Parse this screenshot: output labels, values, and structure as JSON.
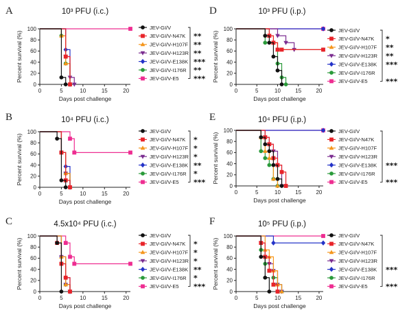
{
  "figure": {
    "colors": {
      "JEV-GI/V": "#111111",
      "JEV-GI/V-N47K": "#e8242a",
      "JEV-GI/V-H107F": "#f5961d",
      "JEV-GI/V-H123R": "#7b2d90",
      "JEV-GI/V-E138K": "#2433c8",
      "JEV-GI/V-I176R": "#2a9a3a",
      "JEV-GI/V-E5": "#ee2d91"
    },
    "markers": {
      "JEV-GI/V": "circle",
      "JEV-GI/V-N47K": "square",
      "JEV-GI/V-H107F": "triangle-up",
      "JEV-GI/V-H123R": "triangle-down",
      "JEV-GI/V-E138K": "diamond",
      "JEV-GI/V-I176R": "circle",
      "JEV-GI/V-E5": "square"
    }
  },
  "chart_data": [
    {
      "panel": "A",
      "type": "line",
      "title": "10³ PFU (i.c.)",
      "xlabel": "Days post challenge",
      "ylabel": "Percent survival (%)",
      "xlim": [
        0,
        21
      ],
      "ylim": [
        0,
        100
      ],
      "xticks": [
        0,
        5,
        10,
        15,
        20
      ],
      "yticks": [
        0,
        20,
        40,
        60,
        80,
        100
      ],
      "legend_position": "right",
      "series": [
        {
          "name": "JEV-GI/V",
          "sig": "",
          "x": [
            0,
            5,
            6
          ],
          "y": [
            100,
            12.5,
            0
          ]
        },
        {
          "name": "JEV-GI/V-N47K",
          "sig": "**",
          "x": [
            0,
            6,
            7
          ],
          "y": [
            100,
            50,
            0
          ]
        },
        {
          "name": "JEV-GI/V-H107F",
          "sig": "**",
          "x": [
            0,
            5,
            6,
            7
          ],
          "y": [
            100,
            87.5,
            37.5,
            0
          ]
        },
        {
          "name": "JEV-GI/V-H123R",
          "sig": "**",
          "x": [
            0,
            6,
            7,
            8
          ],
          "y": [
            100,
            50,
            12.5,
            0
          ]
        },
        {
          "name": "JEV-GI/V-E138K",
          "sig": "***",
          "x": [
            0,
            6,
            7
          ],
          "y": [
            100,
            62.5,
            0
          ]
        },
        {
          "name": "JEV-GI/V-I176R",
          "sig": "**",
          "x": [
            0,
            5,
            6,
            7
          ],
          "y": [
            100,
            87.5,
            37.5,
            0
          ]
        },
        {
          "name": "JEV-GI/V-E5",
          "sig": "***",
          "x": [
            0,
            21
          ],
          "y": [
            100,
            100
          ]
        }
      ]
    },
    {
      "panel": "B",
      "type": "line",
      "title": "10⁴ PFU (i.c.)",
      "xlabel": "Days post challenge",
      "ylabel": "Percent survival (%)",
      "xlim": [
        0,
        21
      ],
      "ylim": [
        0,
        100
      ],
      "xticks": [
        0,
        5,
        10,
        15,
        20
      ],
      "yticks": [
        0,
        20,
        40,
        60,
        80,
        100
      ],
      "legend_position": "right",
      "series": [
        {
          "name": "JEV-GI/V",
          "sig": "",
          "x": [
            0,
            4,
            5,
            6
          ],
          "y": [
            100,
            87.5,
            12.5,
            0
          ]
        },
        {
          "name": "JEV-GI/V-N47K",
          "sig": "*",
          "x": [
            0,
            5,
            6,
            7
          ],
          "y": [
            100,
            62.5,
            12.5,
            0
          ]
        },
        {
          "name": "JEV-GI/V-H107F",
          "sig": "*",
          "x": [
            0,
            5,
            6,
            7
          ],
          "y": [
            100,
            62.5,
            25,
            0
          ]
        },
        {
          "name": "JEV-GI/V-H123R",
          "sig": "*",
          "x": [
            0,
            5,
            6,
            7
          ],
          "y": [
            100,
            62.5,
            25,
            0
          ]
        },
        {
          "name": "JEV-GI/V-E138K",
          "sig": "**",
          "x": [
            0,
            5,
            6,
            7
          ],
          "y": [
            100,
            62.5,
            37.5,
            0
          ]
        },
        {
          "name": "JEV-GI/V-I176R",
          "sig": "*",
          "x": [
            0,
            5,
            6,
            7
          ],
          "y": [
            100,
            62.5,
            25,
            0
          ]
        },
        {
          "name": "JEV-GI/V-E5",
          "sig": "***",
          "x": [
            0,
            7,
            8,
            21
          ],
          "y": [
            100,
            87.5,
            62.5,
            62.5
          ]
        }
      ]
    },
    {
      "panel": "C",
      "type": "line",
      "title": "4.5x10⁴ PFU (i.c.)",
      "xlabel": "Days post challenge",
      "ylabel": "Percent survival (%)",
      "xlim": [
        0,
        21
      ],
      "ylim": [
        0,
        100
      ],
      "xticks": [
        0,
        5,
        10,
        15,
        20
      ],
      "yticks": [
        0,
        20,
        40,
        60,
        80,
        100
      ],
      "legend_position": "right",
      "series": [
        {
          "name": "JEV-GI/V",
          "sig": "",
          "x": [
            0,
            4,
            5
          ],
          "y": [
            100,
            87.5,
            0
          ]
        },
        {
          "name": "JEV-GI/V-N47K",
          "sig": "*",
          "x": [
            0,
            4,
            5,
            6,
            7
          ],
          "y": [
            100,
            87.5,
            50,
            25,
            0
          ]
        },
        {
          "name": "JEV-GI/V-H107F",
          "sig": "*",
          "x": [
            0,
            5,
            6,
            7
          ],
          "y": [
            100,
            62.5,
            12.5,
            0
          ]
        },
        {
          "name": "JEV-GI/V-H123R",
          "sig": "*",
          "x": [
            0,
            5,
            6,
            7
          ],
          "y": [
            100,
            62.5,
            12.5,
            0
          ]
        },
        {
          "name": "JEV-GI/V-E138K",
          "sig": "**",
          "x": [
            0,
            5,
            6,
            7
          ],
          "y": [
            100,
            62.5,
            25,
            0
          ]
        },
        {
          "name": "JEV-GI/V-I176R",
          "sig": "*",
          "x": [
            0,
            5,
            6,
            7
          ],
          "y": [
            100,
            50,
            12.5,
            0
          ]
        },
        {
          "name": "JEV-GI/V-E5",
          "sig": "***",
          "x": [
            0,
            6,
            7,
            8,
            21
          ],
          "y": [
            100,
            87.5,
            62.5,
            50,
            50
          ]
        }
      ]
    },
    {
      "panel": "D",
      "type": "line",
      "title": "10³ PFU (i.p.)",
      "xlabel": "Days post challenge",
      "ylabel": "Percent survival (%)",
      "xlim": [
        0,
        21
      ],
      "ylim": [
        0,
        100
      ],
      "xticks": [
        0,
        5,
        10,
        15,
        20
      ],
      "yticks": [
        0,
        20,
        40,
        60,
        80,
        100
      ],
      "legend_position": "right",
      "series": [
        {
          "name": "JEV-GI/V",
          "sig": "",
          "x": [
            0,
            7,
            8,
            9,
            10,
            11
          ],
          "y": [
            100,
            87.5,
            75,
            50,
            25,
            0
          ]
        },
        {
          "name": "JEV-GI/V-N47K",
          "sig": "*",
          "x": [
            0,
            8,
            9,
            10,
            11,
            21
          ],
          "y": [
            100,
            87.5,
            75,
            62.5,
            62.5,
            62.5
          ]
        },
        {
          "name": "JEV-GI/V-H107F",
          "sig": "**",
          "x": [
            0,
            8,
            9,
            10,
            21
          ],
          "y": [
            100,
            87.5,
            75,
            62.5,
            62.5
          ]
        },
        {
          "name": "JEV-GI/V-H123R",
          "sig": "**",
          "x": [
            0,
            10,
            12,
            14,
            21
          ],
          "y": [
            100,
            87.5,
            75,
            62.5,
            62.5
          ]
        },
        {
          "name": "JEV-GI/V-E138K",
          "sig": "***",
          "x": [
            0,
            21
          ],
          "y": [
            100,
            100
          ]
        },
        {
          "name": "JEV-GI/V-I176R",
          "sig": "",
          "x": [
            0,
            7,
            9,
            10,
            11,
            12
          ],
          "y": [
            100,
            75,
            75,
            37.5,
            12.5,
            0
          ]
        },
        {
          "name": "JEV-GI/V-E5",
          "sig": "***",
          "x": [
            0,
            21
          ],
          "y": [
            100,
            100
          ]
        }
      ]
    },
    {
      "panel": "E",
      "type": "line",
      "title": "10⁴ PFU (i.p.)",
      "xlabel": "Days post challenge",
      "ylabel": "Percent survival (%)",
      "xlim": [
        0,
        21
      ],
      "ylim": [
        0,
        100
      ],
      "xticks": [
        0,
        5,
        10,
        15,
        20
      ],
      "yticks": [
        0,
        20,
        40,
        60,
        80,
        100
      ],
      "legend_position": "right",
      "series": [
        {
          "name": "JEV-GI/V",
          "sig": "",
          "x": [
            0,
            6,
            7,
            8,
            9,
            10,
            11
          ],
          "y": [
            100,
            87.5,
            75,
            62.5,
            37.5,
            12.5,
            0
          ]
        },
        {
          "name": "JEV-GI/V-N47K",
          "sig": "",
          "x": [
            0,
            7,
            8,
            9,
            10,
            11,
            12
          ],
          "y": [
            100,
            87.5,
            75,
            50,
            37.5,
            25,
            0
          ]
        },
        {
          "name": "JEV-GI/V-H107F",
          "sig": "",
          "x": [
            0,
            6,
            7,
            8,
            9,
            10
          ],
          "y": [
            100,
            87.5,
            62.5,
            50,
            12.5,
            0
          ]
        },
        {
          "name": "JEV-GI/V-H123R",
          "sig": "",
          "x": [
            0,
            7,
            8,
            9,
            10,
            11
          ],
          "y": [
            100,
            87.5,
            75,
            62.5,
            37.5,
            0
          ]
        },
        {
          "name": "JEV-GI/V-E138K",
          "sig": "***",
          "x": [
            0,
            21
          ],
          "y": [
            100,
            100
          ]
        },
        {
          "name": "JEV-GI/V-I176R",
          "sig": "",
          "x": [
            0,
            6,
            7,
            8,
            9,
            10
          ],
          "y": [
            100,
            62.5,
            50,
            37.5,
            12.5,
            0
          ]
        },
        {
          "name": "JEV-GI/V-E5",
          "sig": "***",
          "x": [
            0,
            21
          ],
          "y": [
            100,
            100
          ]
        }
      ]
    },
    {
      "panel": "F",
      "type": "line",
      "title": "10⁵ PFU (i.p.)",
      "xlabel": "Days post challenge",
      "ylabel": "Percent survival (%)",
      "xlim": [
        0,
        21
      ],
      "ylim": [
        0,
        100
      ],
      "xticks": [
        0,
        5,
        10,
        15,
        20
      ],
      "yticks": [
        0,
        20,
        40,
        60,
        80,
        100
      ],
      "legend_position": "right",
      "series": [
        {
          "name": "JEV-GI/V",
          "sig": "",
          "x": [
            0,
            6,
            7,
            8
          ],
          "y": [
            100,
            62.5,
            25,
            0
          ]
        },
        {
          "name": "JEV-GI/V-N47K",
          "sig": "",
          "x": [
            0,
            6,
            7,
            8,
            9,
            10
          ],
          "y": [
            100,
            87.5,
            62.5,
            37.5,
            12.5,
            0
          ]
        },
        {
          "name": "JEV-GI/V-H107F",
          "sig": "",
          "x": [
            0,
            7,
            8,
            9,
            10,
            11
          ],
          "y": [
            100,
            75,
            62.5,
            37.5,
            12.5,
            0
          ]
        },
        {
          "name": "JEV-GI/V-H123R",
          "sig": "",
          "x": [
            0,
            6,
            7,
            8,
            9,
            10,
            11
          ],
          "y": [
            100,
            87.5,
            62.5,
            50,
            37.5,
            12.5,
            0
          ]
        },
        {
          "name": "JEV-GI/V-E138K",
          "sig": "***",
          "x": [
            0,
            9,
            21
          ],
          "y": [
            100,
            87.5,
            87.5
          ]
        },
        {
          "name": "JEV-GI/V-I176R",
          "sig": "",
          "x": [
            0,
            6,
            7,
            8,
            9,
            10,
            11
          ],
          "y": [
            100,
            75,
            50,
            37.5,
            25,
            12.5,
            0
          ]
        },
        {
          "name": "JEV-GI/V-E5",
          "sig": "***",
          "x": [
            0,
            21
          ],
          "y": [
            100,
            100
          ]
        }
      ]
    }
  ]
}
